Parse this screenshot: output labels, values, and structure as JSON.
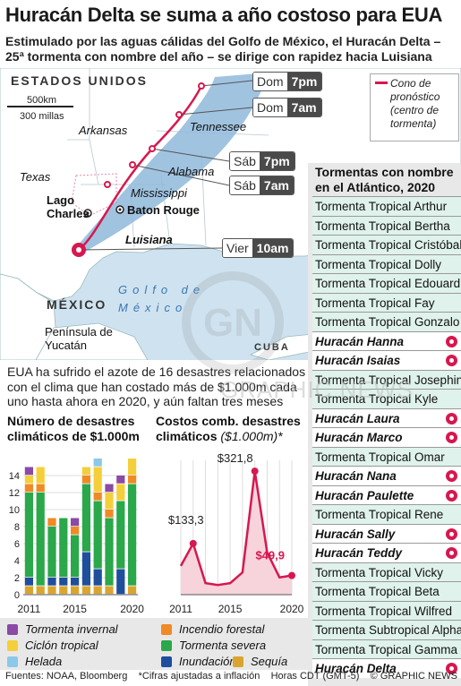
{
  "header": {
    "title": "Huracán Delta se suma a año costoso para EUA",
    "subtitle": "Estimulado por las aguas cálidas del Golfo de México, el Huracán Delta – 25ª tormenta con nombre del año – se dirige con rapidez hacia Luisiana"
  },
  "map": {
    "country_usa": "ESTADOS UNIDOS",
    "country_mexico": "MÉXICO",
    "country_cuba": "CUBA",
    "scale_km": "500km",
    "scale_miles": "300 millas",
    "sea": "Golfo de México",
    "peninsula": "Península de Yucatán",
    "states": {
      "arkansas": "Arkansas",
      "tennessee": "Tennessee",
      "texas": "Texas",
      "alabama": "Alabama",
      "mississippi": "Mississippi",
      "luisiana": "Luisiana"
    },
    "cities": {
      "lake_charles": "Lago Charles",
      "baton_rouge": "Baton Rouge"
    },
    "legend": "Cono de pronóstico (centro de tormenta)",
    "forecast": [
      {
        "day": "Dom",
        "time": "7pm"
      },
      {
        "day": "Dom",
        "time": "7am"
      },
      {
        "day": "Sáb",
        "time": "7pm"
      },
      {
        "day": "Sáb",
        "time": "7am"
      },
      {
        "day": "Vier",
        "time": "10am"
      }
    ],
    "colors": {
      "track": "#d6184f",
      "cone": "#8fb9da",
      "land": "#ffffff",
      "sea": "#cfe2f0"
    }
  },
  "storms": {
    "title": "Tormentas con nombre en el Atlántico, 2020",
    "items": [
      {
        "name": "Tormenta Tropical Arthur",
        "hurricane": false
      },
      {
        "name": "Tormenta Tropical Bertha",
        "hurricane": false
      },
      {
        "name": "Tormenta Tropical Cristóbal",
        "hurricane": false
      },
      {
        "name": "Tormenta Tropical Dolly",
        "hurricane": false
      },
      {
        "name": "Tormenta Tropical Edouard",
        "hurricane": false
      },
      {
        "name": "Tormenta Tropical Fay",
        "hurricane": false
      },
      {
        "name": "Tormenta Tropical Gonzalo",
        "hurricane": false
      },
      {
        "name": "Huracán Hanna",
        "hurricane": true
      },
      {
        "name": "Huracán Isaias",
        "hurricane": true
      },
      {
        "name": "Tormenta Tropical Josephine",
        "hurricane": false
      },
      {
        "name": "Tormenta Tropical Kyle",
        "hurricane": false
      },
      {
        "name": "Huracán Laura",
        "hurricane": true
      },
      {
        "name": "Huracán Marco",
        "hurricane": true
      },
      {
        "name": "Tormenta Tropical Omar",
        "hurricane": false
      },
      {
        "name": "Huracán Nana",
        "hurricane": true
      },
      {
        "name": "Huracán Paulette",
        "hurricane": true
      },
      {
        "name": "Tormenta Tropical Rene",
        "hurricane": false
      },
      {
        "name": "Huracán Sally",
        "hurricane": true
      },
      {
        "name": "Huracán Teddy",
        "hurricane": true
      },
      {
        "name": "Tormenta Tropical Vicky",
        "hurricane": false
      },
      {
        "name": "Tormenta Tropical Beta",
        "hurricane": false
      },
      {
        "name": "Tormenta Tropical Wilfred",
        "hurricane": false
      },
      {
        "name": "Tormenta Subtropical Alpha",
        "hurricane": false
      },
      {
        "name": "Tormenta Tropical Gamma",
        "hurricane": false
      },
      {
        "name": "Huracán Delta",
        "hurricane": true
      }
    ]
  },
  "summary": "EUA ha sufrido el azote de 16 desastres relacionados con el clima que han costado más de $1.000m cada uno hasta ahora en 2020, y aún faltan tres meses",
  "chart_data": [
    {
      "type": "bar",
      "title": "Número de desastres climáticos de $1.000m",
      "categories": [
        "2011",
        "2012",
        "2013",
        "2014",
        "2015",
        "2016",
        "2017",
        "2018",
        "2019",
        "2020"
      ],
      "x_tick_labels": [
        "2011",
        "2015",
        "2020"
      ],
      "ylim": [
        0,
        16
      ],
      "y_ticks": [
        "0",
        "2",
        "4",
        "6",
        "8",
        "10",
        "12",
        "14"
      ],
      "series": [
        {
          "name": "Sequía",
          "color": "#d9a531",
          "values": [
            1,
            1,
            1,
            1,
            1,
            1,
            1,
            1,
            0,
            1
          ]
        },
        {
          "name": "Inundación",
          "color": "#1f4e9c",
          "values": [
            1,
            0,
            1,
            1,
            1,
            4,
            2,
            0,
            3,
            0
          ]
        },
        {
          "name": "Tormenta severa",
          "color": "#2aa84a",
          "values": [
            10,
            11,
            6,
            7,
            5,
            8,
            8,
            8,
            8,
            12
          ]
        },
        {
          "name": "Incendio forestal",
          "color": "#f08a24",
          "values": [
            1,
            1,
            1,
            0,
            1,
            1,
            1,
            1,
            0,
            1
          ]
        },
        {
          "name": "Ciclón tropical",
          "color": "#f5cf3a",
          "values": [
            1,
            2,
            0,
            0,
            0,
            1,
            3,
            2,
            2,
            2
          ]
        },
        {
          "name": "Helada",
          "color": "#8cc8e8",
          "values": [
            0,
            0,
            0,
            0,
            0,
            0,
            1,
            0,
            0,
            0
          ]
        },
        {
          "name": "Tormenta invernal",
          "color": "#8a4aa5",
          "values": [
            1,
            0,
            0,
            0,
            1,
            0,
            0,
            1,
            1,
            0
          ]
        }
      ]
    },
    {
      "type": "area",
      "title": "Costos comb. desastres climáticos",
      "unit": "($1.000m)*",
      "x": [
        2011,
        2012,
        2013,
        2014,
        2015,
        2016,
        2017,
        2018,
        2019,
        2020
      ],
      "x_tick_labels": [
        "2011",
        "2015",
        "2020"
      ],
      "values": [
        75,
        133.3,
        30,
        25,
        30,
        58,
        321.8,
        110,
        45,
        49.9
      ],
      "labels": [
        {
          "index": 1,
          "text": "$133,3"
        },
        {
          "index": 6,
          "text": "$321,8"
        },
        {
          "index": 9,
          "text": "$49,9"
        }
      ],
      "ylim": [
        0,
        350
      ],
      "color": "#d6184f",
      "fill": "#f7d3dc"
    }
  ],
  "keys": [
    {
      "label": "Tormenta invernal",
      "color": "#8a4aa5"
    },
    {
      "label": "Incendio forestal",
      "color": "#f08a24"
    },
    {
      "label": "Ciclón tropical",
      "color": "#f5cf3a"
    },
    {
      "label": "Tormenta severa",
      "color": "#2aa84a"
    },
    {
      "label": "Helada",
      "color": "#8cc8e8"
    },
    {
      "label": "Inundación",
      "color": "#1f4e9c"
    },
    {
      "label": "Sequía",
      "color": "#d9a531"
    }
  ],
  "footer": {
    "sources": "Fuentes: NOAA, Bloomberg",
    "note": "*Cifras ajustadas a inflación",
    "timezone": "Horas CDT (GMT-5)",
    "credit": "© GRAPHIC NEWS"
  },
  "watermark": "GRAPHIC NEWS"
}
